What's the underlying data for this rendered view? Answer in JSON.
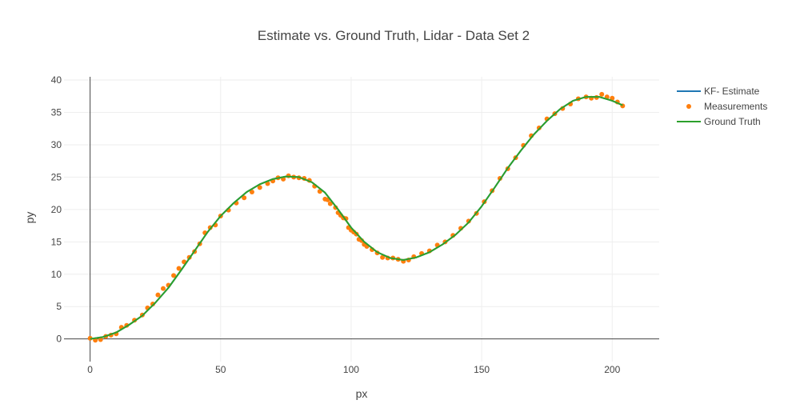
{
  "chart_data": {
    "type": "line",
    "title": "Estimate vs. Ground Truth, Lidar - Data Set 2",
    "xlabel": "px",
    "ylabel": "py",
    "xlim": [
      -10,
      218
    ],
    "ylim": [
      -3.5,
      40.5
    ],
    "xticks": [
      0,
      50,
      100,
      150,
      200
    ],
    "yticks": [
      0,
      5,
      10,
      15,
      20,
      25,
      30,
      35,
      40
    ],
    "grid": true,
    "legend_position": "top-right",
    "series": [
      {
        "name": "KF- Estimate",
        "mode": "line",
        "color": "#1f77b4",
        "x": [
          0,
          5,
          10,
          15,
          20,
          25,
          30,
          35,
          40,
          45,
          50,
          55,
          60,
          65,
          70,
          75,
          80,
          85,
          90,
          95,
          100,
          105,
          110,
          115,
          120,
          125,
          130,
          135,
          140,
          145,
          150,
          155,
          160,
          165,
          170,
          175,
          180,
          185,
          190,
          195,
          200,
          204
        ],
        "y": [
          0,
          0.3,
          1.0,
          2.2,
          3.6,
          5.6,
          7.9,
          10.7,
          13.6,
          16.5,
          19.0,
          21.0,
          22.7,
          23.9,
          24.7,
          25.1,
          25.0,
          24.2,
          22.6,
          20.0,
          17.2,
          15.0,
          13.4,
          12.5,
          12.2,
          12.6,
          13.4,
          14.6,
          16.1,
          18.0,
          20.5,
          23.4,
          26.4,
          29.1,
          31.6,
          33.7,
          35.5,
          36.8,
          37.4,
          37.4,
          36.8,
          36.1
        ]
      },
      {
        "name": "Measurements",
        "mode": "markers",
        "color": "#ff7f0e",
        "x": [
          0,
          2,
          4,
          6,
          8,
          10,
          12,
          14,
          17,
          20,
          22,
          24,
          26,
          28,
          30,
          32,
          34,
          36,
          38,
          40,
          42,
          44,
          46,
          48,
          50,
          53,
          56,
          59,
          62,
          65,
          68,
          70,
          72,
          74,
          76,
          78,
          80,
          82,
          84,
          86,
          88,
          90,
          91,
          92,
          94,
          95,
          96,
          97,
          98,
          99,
          100,
          101,
          102,
          103,
          104,
          105,
          106,
          108,
          110,
          112,
          114,
          116,
          118,
          120,
          122,
          124,
          127,
          130,
          133,
          136,
          139,
          142,
          145,
          148,
          151,
          154,
          157,
          160,
          163,
          166,
          169,
          172,
          175,
          178,
          181,
          184,
          187,
          190,
          192,
          194,
          196,
          198,
          200,
          202,
          204
        ],
        "y": [
          0.1,
          -0.2,
          -0.1,
          0.4,
          0.6,
          0.8,
          1.8,
          2.1,
          2.9,
          3.7,
          4.8,
          5.4,
          6.8,
          7.8,
          8.3,
          9.8,
          10.9,
          11.9,
          12.6,
          13.5,
          14.7,
          16.4,
          17.2,
          17.6,
          19.0,
          19.9,
          21.0,
          21.8,
          22.7,
          23.4,
          24.0,
          24.4,
          24.9,
          24.7,
          25.2,
          25.0,
          24.9,
          24.8,
          24.5,
          23.6,
          22.8,
          21.6,
          21.5,
          20.9,
          20.3,
          19.5,
          19.1,
          18.7,
          18.6,
          17.2,
          16.8,
          16.5,
          16.2,
          15.4,
          15.2,
          14.6,
          14.3,
          13.8,
          13.3,
          12.6,
          12.5,
          12.5,
          12.3,
          12.0,
          12.2,
          12.7,
          13.2,
          13.6,
          14.5,
          15.0,
          16.0,
          17.1,
          18.2,
          19.4,
          21.2,
          22.9,
          24.8,
          26.3,
          28.0,
          29.9,
          31.4,
          32.6,
          34.0,
          34.8,
          35.6,
          36.3,
          37.1,
          37.4,
          37.2,
          37.3,
          37.8,
          37.4,
          37.2,
          36.6,
          36.0
        ]
      },
      {
        "name": "Ground Truth",
        "mode": "line",
        "color": "#2ca02c",
        "x": [
          0,
          5,
          10,
          15,
          20,
          25,
          30,
          35,
          40,
          45,
          50,
          55,
          60,
          65,
          70,
          75,
          80,
          85,
          90,
          95,
          100,
          105,
          110,
          115,
          120,
          125,
          130,
          135,
          140,
          145,
          150,
          155,
          160,
          165,
          170,
          175,
          180,
          185,
          190,
          195,
          200,
          204
        ],
        "y": [
          0,
          0.3,
          1.0,
          2.2,
          3.6,
          5.6,
          7.9,
          10.7,
          13.6,
          16.5,
          19.0,
          21.0,
          22.7,
          23.9,
          24.7,
          25.1,
          25.0,
          24.2,
          22.6,
          20.0,
          17.2,
          15.0,
          13.4,
          12.5,
          12.2,
          12.6,
          13.4,
          14.6,
          16.1,
          18.0,
          20.5,
          23.4,
          26.4,
          29.1,
          31.6,
          33.7,
          35.5,
          36.8,
          37.4,
          37.4,
          36.8,
          36.1
        ]
      }
    ]
  }
}
